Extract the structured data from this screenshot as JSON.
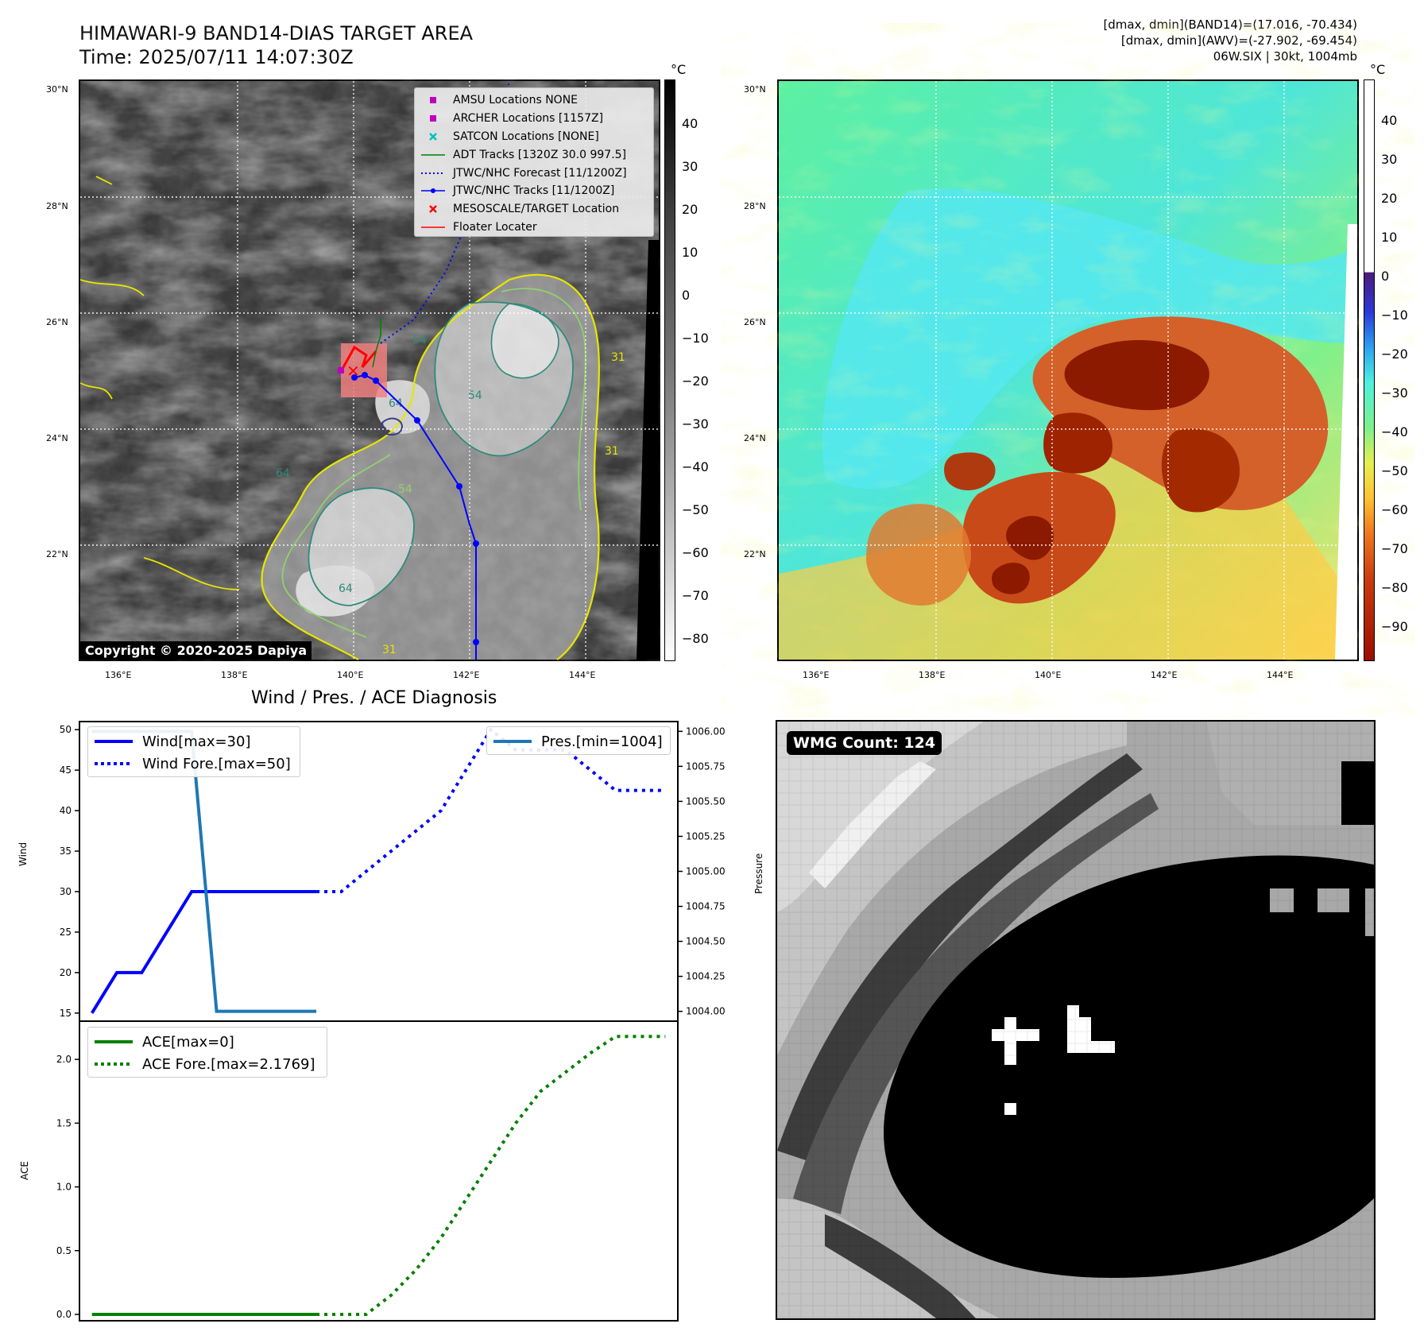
{
  "header": {
    "title_line1": "HIMAWARI-9 BAND14-DIAS TARGET AREA",
    "title_line2": "Time: 2025/07/11 14:07:30Z",
    "info_line1": "[dmax, dmin](BAND14)=(17.016, -70.434)",
    "info_line2": "[dmax, dmin](AWV)=(-27.902, -69.454)",
    "info_line3": "06W.SIX | 30kt, 1004mb"
  },
  "map_axes": {
    "lat_ticks": [
      "30°N",
      "28°N",
      "26°N",
      "24°N",
      "22°N"
    ],
    "lon_ticks": [
      "136°E",
      "138°E",
      "140°E",
      "142°E",
      "144°E"
    ]
  },
  "ir_map": {
    "colorbar_unit": "°C",
    "colorbar_ticks": [
      "40",
      "30",
      "20",
      "10",
      "0",
      "−10",
      "−20",
      "−30",
      "−40",
      "−50",
      "−60",
      "−70",
      "−80"
    ],
    "contour_labels": [
      "54",
      "31",
      "64",
      "54",
      "31",
      "31",
      "54",
      "64",
      "64"
    ],
    "copyright": "Copyright © 2020-2025 Dapiya",
    "legend": [
      {
        "label": "AMSU Locations NONE",
        "color": "#bf00bf",
        "symbol": "square"
      },
      {
        "label": "ARCHER Locations [1157Z]",
        "color": "#bf00bf",
        "symbol": "square"
      },
      {
        "label": "SATCON Locations [NONE]",
        "color": "#00bfbf",
        "symbol": "x"
      },
      {
        "label": "ADT Tracks [1320Z 30.0 997.5]",
        "color": "#008000",
        "symbol": "line"
      },
      {
        "label": "JTWC/NHC Forecast [11/1200Z]",
        "color": "#0000ff",
        "symbol": "dotted"
      },
      {
        "label": "JTWC/NHC Tracks [11/1200Z]",
        "color": "#0000ff",
        "symbol": "line-dot"
      },
      {
        "label": "MESOSCALE/TARGET Location",
        "color": "#ff0000",
        "symbol": "x"
      },
      {
        "label": "Floater Locater",
        "color": "#ff0000",
        "symbol": "line"
      }
    ]
  },
  "awv_map": {
    "colorbar_unit": "°C",
    "colorbar_ticks": [
      "40",
      "30",
      "20",
      "10",
      "0",
      "−10",
      "−20",
      "−30",
      "−40",
      "−50",
      "−60",
      "−70",
      "−80",
      "−90"
    ]
  },
  "diagnosis": {
    "title": "Wind / Pres. / ACE Diagnosis",
    "wind_ylabel": "Wind",
    "pressure_ylabel": "Pressure",
    "ace_ylabel": "ACE",
    "wind_ticks": [
      "50",
      "45",
      "40",
      "35",
      "30",
      "25",
      "20",
      "15"
    ],
    "pressure_ticks": [
      "1006.00",
      "1005.75",
      "1005.50",
      "1005.25",
      "1005.00",
      "1004.75",
      "1004.50",
      "1004.25",
      "1004.00"
    ],
    "ace_ticks": [
      "2.0",
      "1.5",
      "1.0",
      "0.5",
      "0.0"
    ],
    "legend_wind": "Wind[max=30]",
    "legend_wind_fore": "Wind Fore.[max=50]",
    "legend_pres": "Pres.[min=1004]",
    "legend_ace": "ACE[max=0]",
    "legend_ace_fore": "ACE Fore.[max=2.1769]"
  },
  "chart_data": [
    {
      "type": "line",
      "title": "Wind / Pres. / ACE Diagnosis",
      "ylabel": "Wind",
      "ylim": [
        14,
        51
      ],
      "y2label": "Pressure",
      "y2lim": [
        1003.93,
        1006.07
      ],
      "series": [
        {
          "name": "Wind[max=30]",
          "color": "#0000ff",
          "style": "solid",
          "x": [
            0,
            1,
            2,
            4,
            5,
            6,
            7,
            8,
            9
          ],
          "values": [
            15,
            20,
            20,
            30,
            30,
            30,
            30,
            30,
            30
          ]
        },
        {
          "name": "Wind Fore.[max=50]",
          "color": "#0000ff",
          "style": "dotted",
          "x": [
            9,
            10,
            11,
            12,
            13,
            14,
            15,
            16,
            17,
            18,
            19,
            20,
            21,
            22,
            23
          ],
          "values": [
            30,
            30,
            32.5,
            35,
            37.5,
            40,
            45,
            50,
            47.5,
            47.5,
            47.5,
            45,
            42.5,
            42.5,
            42.5
          ]
        },
        {
          "name": "Pres.[min=1004]",
          "color": "#1f77b4",
          "style": "solid",
          "axis": "y2",
          "x": [
            0,
            1,
            2,
            3,
            4,
            5,
            6,
            7,
            8,
            9
          ],
          "values": [
            1006,
            1006,
            1006,
            1006,
            1006,
            1004,
            1004,
            1004,
            1004,
            1004
          ]
        }
      ]
    },
    {
      "type": "line",
      "ylabel": "ACE",
      "ylim": [
        -0.05,
        2.3
      ],
      "series": [
        {
          "name": "ACE[max=0]",
          "color": "#008000",
          "style": "solid",
          "x": [
            0,
            9
          ],
          "values": [
            0,
            0
          ]
        },
        {
          "name": "ACE Fore.[max=2.1769]",
          "color": "#008000",
          "style": "dotted",
          "x": [
            9,
            10,
            11,
            12,
            13,
            14,
            15,
            16,
            17,
            18,
            19,
            20,
            21,
            22,
            23
          ],
          "values": [
            0,
            0,
            0,
            0.15,
            0.35,
            0.6,
            0.9,
            1.2,
            1.5,
            1.75,
            1.9,
            2.05,
            2.18,
            2.18,
            2.18
          ]
        }
      ]
    }
  ],
  "wmg": {
    "label": "WMG Count: 124"
  }
}
